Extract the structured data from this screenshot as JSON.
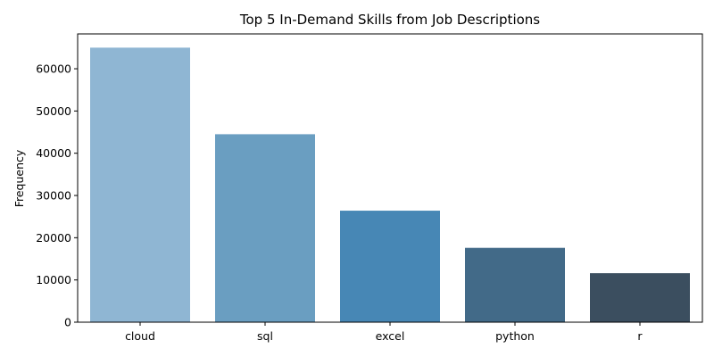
{
  "chart_data": {
    "type": "bar",
    "title": "Top 5 In-Demand Skills from Job Descriptions",
    "xlabel": "",
    "ylabel": "Frequency",
    "categories": [
      "cloud",
      "sql",
      "excel",
      "python",
      "r"
    ],
    "values": [
      65000,
      44500,
      26400,
      17600,
      11600
    ],
    "ylim": [
      0,
      68250
    ],
    "yticks": [
      0,
      10000,
      20000,
      30000,
      40000,
      50000,
      60000
    ],
    "colors": [
      "#8fb6d3",
      "#6a9ec1",
      "#4787b5",
      "#426a88",
      "#3b4e5f"
    ],
    "grid": false,
    "legend": "none"
  }
}
